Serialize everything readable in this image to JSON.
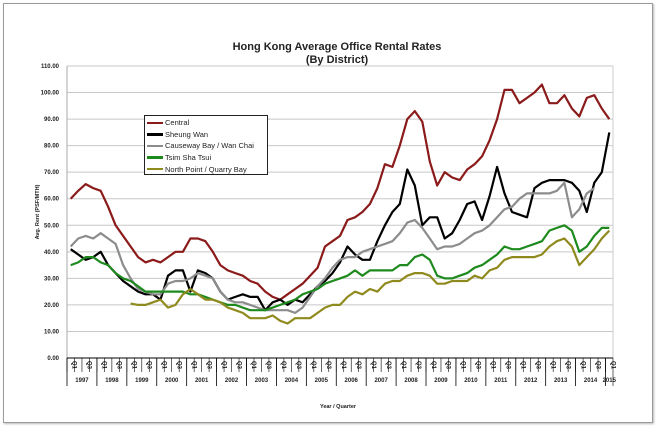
{
  "chart_data": {
    "type": "line",
    "title": "Hong Kong Average Office Rental Rates",
    "subtitle": "(By District)",
    "xlabel": "Year / Quarter",
    "ylabel": "Avg. Rent (PSF/MTH)",
    "ylim": [
      0,
      110
    ],
    "yticks": [
      "0.00",
      "10.00",
      "20.00",
      "30.00",
      "40.00",
      "50.00",
      "60.00",
      "70.00",
      "80.00",
      "90.00",
      "100.00",
      "110.00"
    ],
    "years": [
      "1997",
      "1998",
      "1999",
      "2000",
      "2001",
      "2002",
      "2003",
      "2004",
      "2005",
      "2006",
      "2007",
      "2008",
      "2009",
      "2010",
      "2011",
      "2012",
      "2013",
      "2014",
      "2015"
    ],
    "quarter_labels": [
      "Q1",
      "Q3"
    ],
    "grid": true,
    "legend": "upper-left inside",
    "series": [
      {
        "name": "Central",
        "color": "#8b1a1a",
        "values": [
          60,
          63,
          65.5,
          64,
          63,
          57,
          50,
          46,
          42,
          38,
          36,
          37,
          36,
          38,
          40,
          40,
          45,
          45,
          44,
          40,
          35,
          33,
          32,
          31,
          29,
          28,
          25,
          23,
          22,
          24,
          26,
          28,
          31,
          34,
          42,
          44,
          46,
          52,
          53,
          55,
          58,
          64,
          73,
          72,
          80,
          90,
          93,
          89,
          74,
          65,
          70,
          68,
          67,
          71,
          73,
          76,
          82,
          90,
          101,
          101,
          96,
          98,
          100,
          103,
          96,
          96,
          99,
          94,
          91,
          98,
          99,
          94,
          90
        ]
      },
      {
        "name": "Sheung Wan",
        "color": "#000000",
        "values": [
          41,
          39,
          37,
          38,
          40,
          35,
          32,
          29,
          27,
          25,
          24,
          24,
          22,
          31,
          33,
          33,
          25,
          33,
          32,
          30,
          25,
          22,
          23,
          24,
          23,
          23,
          18,
          21,
          22,
          20,
          22,
          21,
          24,
          27,
          29,
          32,
          36,
          42,
          39,
          37,
          37,
          44,
          50,
          55,
          58,
          71,
          65,
          50,
          53,
          53,
          45,
          47,
          52,
          58,
          59,
          52,
          61,
          72,
          62,
          55,
          54,
          53,
          64,
          66,
          67,
          67,
          67,
          66,
          63,
          55,
          66,
          70,
          85
        ]
      },
      {
        "name": "Causeway Bay / Wan Chai",
        "color": "#8c8c8c",
        "values": [
          42,
          45,
          46,
          45,
          47,
          45,
          43,
          35,
          30,
          26,
          25,
          24,
          24,
          28,
          29,
          29,
          30,
          32,
          31,
          30,
          25,
          22,
          21,
          21,
          20,
          19,
          18,
          18,
          18,
          18,
          17,
          19,
          23,
          27,
          30,
          34,
          37,
          38,
          38,
          40,
          41,
          42,
          43,
          44,
          47,
          51,
          52,
          49,
          45,
          41,
          42,
          42,
          43,
          45,
          47,
          48,
          50,
          53,
          56,
          57,
          60,
          62,
          62,
          62,
          62,
          63,
          66,
          53,
          56,
          62,
          64,
          null,
          null
        ]
      },
      {
        "name": "Tsim Sha Tsui",
        "color": "#1e8a1e",
        "values": [
          35,
          36,
          38,
          38,
          36,
          35,
          32,
          30,
          29,
          27,
          25,
          25,
          25,
          25,
          25,
          25,
          24,
          24,
          23,
          22,
          21,
          20,
          20,
          19,
          18,
          18,
          18,
          19,
          20,
          21,
          22,
          24,
          25,
          26,
          28,
          29,
          30,
          31,
          33,
          31,
          33,
          33,
          33,
          33,
          35,
          35,
          38,
          39,
          37,
          31,
          30,
          30,
          31,
          32,
          34,
          35,
          37,
          39,
          42,
          41,
          41,
          42,
          43,
          44,
          48,
          49,
          50,
          48,
          40,
          42,
          46,
          49,
          49
        ]
      },
      {
        "name": "North Point / Quarry Bay",
        "color": "#8f8a1e",
        "values": [
          null,
          null,
          null,
          null,
          null,
          null,
          null,
          null,
          20.5,
          20,
          20,
          21,
          22,
          19,
          20,
          24,
          26,
          24,
          22,
          22,
          21,
          19,
          18,
          17,
          15,
          15,
          15,
          16,
          14,
          13,
          15,
          15,
          15,
          17,
          19,
          20,
          20,
          23,
          25,
          24,
          26,
          25,
          28,
          29,
          29,
          31,
          32,
          32,
          31,
          28,
          28,
          29,
          29,
          29,
          31,
          30,
          33,
          34,
          37,
          38,
          38,
          38,
          38,
          39,
          42,
          44,
          45,
          42,
          35,
          38,
          41,
          45,
          48
        ]
      }
    ]
  }
}
